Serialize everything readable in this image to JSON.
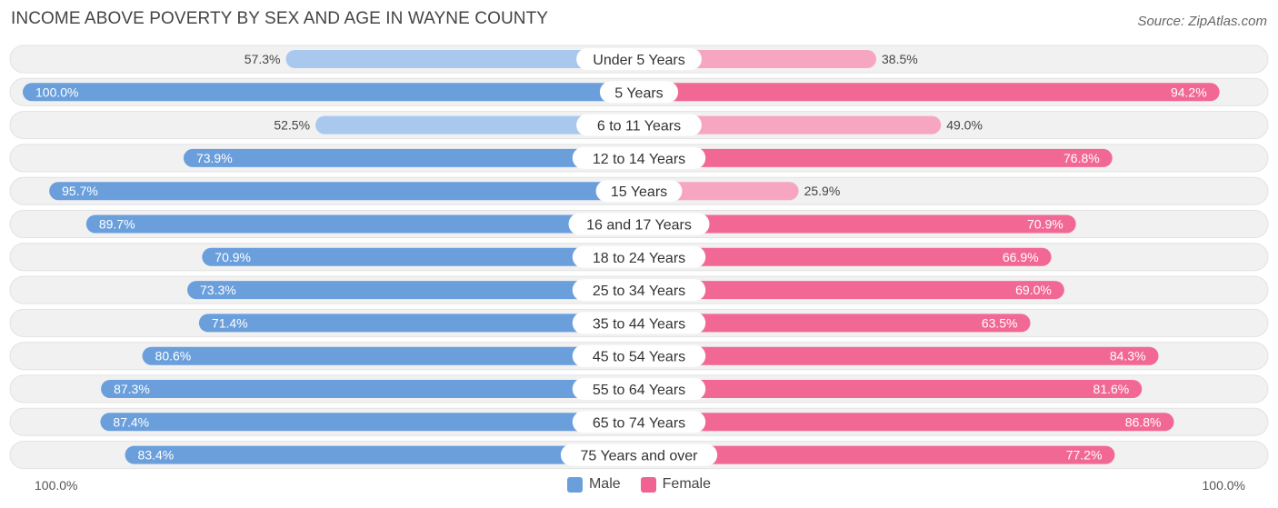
{
  "title": "INCOME ABOVE POVERTY BY SEX AND AGE IN WAYNE COUNTY",
  "source": "Source: ZipAtlas.com",
  "axis": {
    "left_label": "100.0%",
    "right_label": "100.0%"
  },
  "legend": [
    {
      "label": "Male",
      "color": "#6a9fdc"
    },
    {
      "label": "Female",
      "color": "#f06292"
    }
  ],
  "colors": {
    "male_strong": "#6a9fdc",
    "male_light": "#a9c8ee",
    "female_strong": "#f26895",
    "female_light": "#f7a6c2",
    "row_bg": "#f1f1f1"
  },
  "chart_data": {
    "type": "bar",
    "orientation": "horizontal-diverging",
    "title": "INCOME ABOVE POVERTY BY SEX AND AGE IN WAYNE COUNTY",
    "xlim": [
      0,
      100
    ],
    "legend_position": "bottom-center",
    "categories": [
      "Under 5 Years",
      "5 Years",
      "6 to 11 Years",
      "12 to 14 Years",
      "15 Years",
      "16 and 17 Years",
      "18 to 24 Years",
      "25 to 34 Years",
      "35 to 44 Years",
      "45 to 54 Years",
      "55 to 64 Years",
      "65 to 74 Years",
      "75 Years and over"
    ],
    "series": [
      {
        "name": "Male",
        "values": [
          57.3,
          100.0,
          52.5,
          73.9,
          95.7,
          89.7,
          70.9,
          73.3,
          71.4,
          80.6,
          87.3,
          87.4,
          83.4
        ],
        "labels": [
          "57.3%",
          "100.0%",
          "52.5%",
          "73.9%",
          "95.7%",
          "89.7%",
          "70.9%",
          "73.3%",
          "71.4%",
          "80.6%",
          "87.3%",
          "87.4%",
          "83.4%"
        ]
      },
      {
        "name": "Female",
        "values": [
          38.5,
          94.2,
          49.0,
          76.8,
          25.9,
          70.9,
          66.9,
          69.0,
          63.5,
          84.3,
          81.6,
          86.8,
          77.2
        ],
        "labels": [
          "38.5%",
          "94.2%",
          "49.0%",
          "76.8%",
          "25.9%",
          "70.9%",
          "66.9%",
          "69.0%",
          "63.5%",
          "84.3%",
          "81.6%",
          "86.8%",
          "77.2%"
        ]
      }
    ]
  }
}
